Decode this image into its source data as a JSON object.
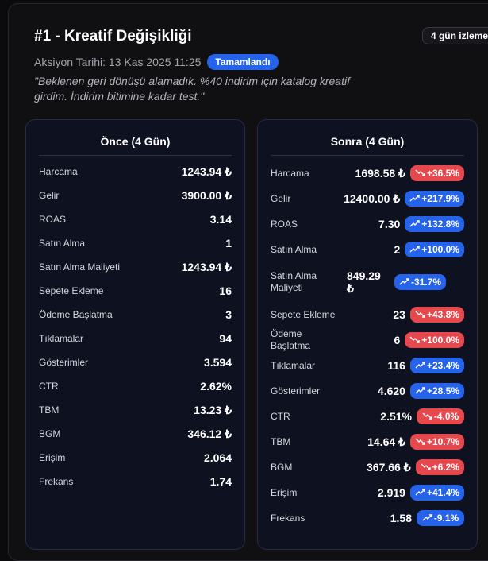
{
  "header": {
    "title": "#1 - Kreatif Değişikliği",
    "watch_badge": "4 gün izleme",
    "action_date": "Aksiyon Tarihi: 13 Kas 2025 11:25",
    "status": "Tamamlandı",
    "note": "\"Beklenen geri dönüşü alamadık. %40 indirim için katalog kreatif girdim. İndirim bitimine kadar test.\""
  },
  "before": {
    "title": "Önce (4 Gün)",
    "rows": [
      {
        "label": "Harcama",
        "value": "1243.94 ₺"
      },
      {
        "label": "Gelir",
        "value": "3900.00 ₺"
      },
      {
        "label": "ROAS",
        "value": "3.14"
      },
      {
        "label": "Satın Alma",
        "value": "1"
      },
      {
        "label": "Satın Alma Maliyeti",
        "value": "1243.94 ₺"
      },
      {
        "label": "Sepete Ekleme",
        "value": "16"
      },
      {
        "label": "Ödeme Başlatma",
        "value": "3"
      },
      {
        "label": "Tıklamalar",
        "value": "94"
      },
      {
        "label": "Gösterimler",
        "value": "3.594"
      },
      {
        "label": "CTR",
        "value": "2.62%"
      },
      {
        "label": "TBM",
        "value": "13.23 ₺"
      },
      {
        "label": "BGM",
        "value": "346.12 ₺"
      },
      {
        "label": "Erişim",
        "value": "2.064"
      },
      {
        "label": "Frekans",
        "value": "1.74"
      }
    ]
  },
  "after": {
    "title": "Sonra (4 Gün)",
    "rows": [
      {
        "label": "Harcama",
        "value": "1698.58 ₺",
        "change": "+36.5%",
        "tone": "down",
        "trend": "down-icon"
      },
      {
        "label": "Gelir",
        "value": "12400.00 ₺",
        "change": "+217.9%",
        "tone": "up",
        "trend": "up-icon"
      },
      {
        "label": "ROAS",
        "value": "7.30",
        "change": "+132.8%",
        "tone": "up",
        "trend": "up-icon"
      },
      {
        "label": "Satın Alma",
        "value": "2",
        "change": "+100.0%",
        "tone": "up",
        "trend": "up-icon"
      },
      {
        "label": "Satın Alma Maliyeti",
        "value": "849.29 ₺",
        "change": "-31.7%",
        "tone": "up",
        "trend": "up-icon"
      },
      {
        "label": "Sepete Ekleme",
        "value": "23",
        "change": "+43.8%",
        "tone": "down",
        "trend": "down-icon"
      },
      {
        "label": "Ödeme Başlatma",
        "value": "6",
        "change": "+100.0%",
        "tone": "down",
        "trend": "down-icon"
      },
      {
        "label": "Tıklamalar",
        "value": "116",
        "change": "+23.4%",
        "tone": "up",
        "trend": "up-icon"
      },
      {
        "label": "Gösterimler",
        "value": "4.620",
        "change": "+28.5%",
        "tone": "up",
        "trend": "up-icon"
      },
      {
        "label": "CTR",
        "value": "2.51%",
        "change": "-4.0%",
        "tone": "down",
        "trend": "down-icon"
      },
      {
        "label": "TBM",
        "value": "14.64 ₺",
        "change": "+10.7%",
        "tone": "down",
        "trend": "down-icon"
      },
      {
        "label": "BGM",
        "value": "367.66 ₺",
        "change": "+6.2%",
        "tone": "down",
        "trend": "down-icon"
      },
      {
        "label": "Erişim",
        "value": "2.919",
        "change": "+41.4%",
        "tone": "up",
        "trend": "up-icon"
      },
      {
        "label": "Frekans",
        "value": "1.58",
        "change": "-9.1%",
        "tone": "up",
        "trend": "up-icon"
      }
    ]
  },
  "colors": {
    "up": "#2563eb",
    "down": "#e5484d",
    "accent": "#2563eb"
  }
}
